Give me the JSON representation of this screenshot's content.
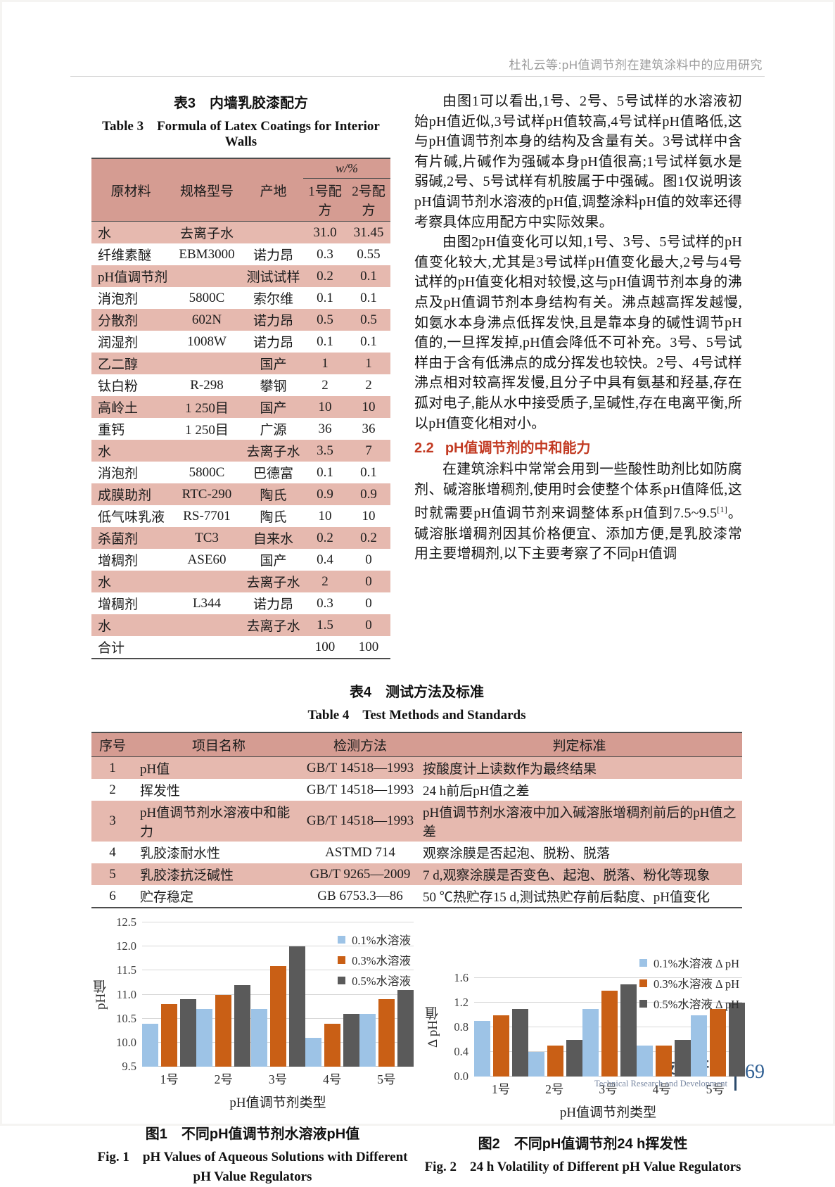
{
  "page": {
    "running_head": "杜礼云等:pH值调节剂在建筑涂料中的应用研究",
    "footer": {
      "section_cn": "技术研发",
      "section_en": "Technical Research and Development",
      "page_number": "69"
    }
  },
  "colors": {
    "table_header_bg": "#d59c92",
    "table_stripe_bg": "#e6b9af",
    "section_heading": "#c23a22",
    "footer_blue": "#2f5f93",
    "series_blue": "#9dc3e6",
    "series_orange": "#c95f15",
    "series_gray": "#5a5a5a"
  },
  "table3": {
    "title_cn": "表3　内墙乳胶漆配方",
    "title_en": "Table 3　Formula of Latex Coatings for Interior Walls",
    "headers": {
      "material": "原材料",
      "spec": "规格型号",
      "origin": "产地",
      "w_group": "w/%",
      "f1": "1号配方",
      "f2": "2号配方"
    },
    "rows": [
      [
        "水",
        "去离子水",
        "",
        "31.0",
        "31.45"
      ],
      [
        "纤维素醚",
        "EBM3000",
        "诺力昂",
        "0.3",
        "0.55"
      ],
      [
        "pH值调节剂",
        "",
        "测试试样",
        "0.2",
        "0.1"
      ],
      [
        "消泡剂",
        "5800C",
        "索尔维",
        "0.1",
        "0.1"
      ],
      [
        "分散剂",
        "602N",
        "诺力昂",
        "0.5",
        "0.5"
      ],
      [
        "润湿剂",
        "1008W",
        "诺力昂",
        "0.1",
        "0.1"
      ],
      [
        "乙二醇",
        "",
        "国产",
        "1",
        "1"
      ],
      [
        "钛白粉",
        "R-298",
        "攀钢",
        "2",
        "2"
      ],
      [
        "高岭土",
        "1 250目",
        "国产",
        "10",
        "10"
      ],
      [
        "重钙",
        "1 250目",
        "广源",
        "36",
        "36"
      ],
      [
        "水",
        "",
        "去离子水",
        "3.5",
        "7"
      ],
      [
        "消泡剂",
        "5800C",
        "巴德富",
        "0.1",
        "0.1"
      ],
      [
        "成膜助剂",
        "RTC-290",
        "陶氏",
        "0.9",
        "0.9"
      ],
      [
        "低气味乳液",
        "RS-7701",
        "陶氏",
        "10",
        "10"
      ],
      [
        "杀菌剂",
        "TC3",
        "自来水",
        "0.2",
        "0.2"
      ],
      [
        "增稠剂",
        "ASE60",
        "国产",
        "0.4",
        "0"
      ],
      [
        "水",
        "",
        "去离子水",
        "2",
        "0"
      ],
      [
        "增稠剂",
        "L344",
        "诺力昂",
        "0.3",
        "0"
      ],
      [
        "水",
        "",
        "去离子水",
        "1.5",
        "0"
      ],
      [
        "合计",
        "",
        "",
        "100",
        "100"
      ]
    ]
  },
  "body_text": {
    "p1": "由图1可以看出,1号、2号、5号试样的水溶液初始pH值近似,3号试样pH值较高,4号试样pH值略低,这与pH值调节剂本身的结构及含量有关。3号试样中含有片碱,片碱作为强碱本身pH值很高;1号试样氨水是弱碱,2号、5号试样有机胺属于中强碱。图1仅说明该pH值调节剂水溶液的pH值,调整涂料pH值的效率还得考察具体应用配方中实际效果。",
    "p2": "由图2pH值变化可以知,1号、3号、5号试样的pH值变化较大,尤其是3号试样pH值变化最大,2号与4号试样的pH值变化相对较慢,这与pH值调节剂本身的沸点及pH值调节剂本身结构有关。沸点越高挥发越慢,如氨水本身沸点低挥发快,且是靠本身的碱性调节pH值的,一旦挥发掉,pH值会降低不可补充。3号、5号试样由于含有低沸点的成分挥发也较快。2号、4号试样沸点相对较高挥发慢,且分子中具有氨基和羟基,存在孤对电子,能从水中接受质子,呈碱性,存在电离平衡,所以pH值变化相对小。",
    "section_number": "2.2",
    "section_title": "pH值调节剂的中和能力",
    "p3_a": "在建筑涂料中常常会用到一些酸性助剂比如防腐剂、碱溶胀增稠剂,使用时会使整个体系pH值降低,这时就需要pH值调节剂来调整体系pH值到7.5~9.5",
    "p3_sup": "[1]",
    "p3_b": "。碱溶胀增稠剂因其价格便宜、添加方便,是乳胶漆常用主要增稠剂,以下主要考察了不同pH值调"
  },
  "table4": {
    "title_cn": "表4　测试方法及标准",
    "title_en": "Table 4　Test Methods and Standards",
    "headers": [
      "序号",
      "项目名称",
      "检测方法",
      "判定标准"
    ],
    "rows": [
      [
        "1",
        "pH值",
        "GB/T 14518—1993",
        "按酸度计上读数作为最终结果"
      ],
      [
        "2",
        "挥发性",
        "GB/T 14518—1993",
        "24 h前后pH值之差"
      ],
      [
        "3",
        "pH值调节剂水溶液中和能力",
        "GB/T 14518—1993",
        "pH值调节剂水溶液中加入碱溶胀增稠剂前后的pH值之差"
      ],
      [
        "4",
        "乳胶漆耐水性",
        "ASTMD 714",
        "观察涂膜是否起泡、脱粉、脱落"
      ],
      [
        "5",
        "乳胶漆抗泛碱性",
        "GB/T 9265—2009",
        "7 d,观察涂膜是否变色、起泡、脱落、粉化等现象"
      ],
      [
        "6",
        "贮存稳定",
        "GB 6753.3—86",
        "50 ℃热贮存15 d,测试热贮存前后黏度、pH值变化"
      ]
    ]
  },
  "figures": [
    {
      "caption_cn": "图1　不同pH值调节剂水溶液pH值",
      "caption_en": "Fig. 1　pH Values of Aqueous Solutions with Different pH Value Regulators"
    },
    {
      "caption_cn": "图2　不同pH值调节剂24 h挥发性",
      "caption_en": "Fig. 2　24 h Volatility of Different pH Value Regulators"
    }
  ],
  "chart_data": [
    {
      "type": "bar",
      "categories": [
        "1号",
        "2号",
        "3号",
        "4号",
        "5号"
      ],
      "series": [
        {
          "name": "0.1%水溶液",
          "values": [
            10.4,
            10.7,
            10.7,
            10.1,
            10.6
          ]
        },
        {
          "name": "0.3%水溶液",
          "values": [
            10.8,
            11.0,
            11.6,
            10.4,
            10.9
          ]
        },
        {
          "name": "0.5%水溶液",
          "values": [
            10.9,
            11.2,
            12.0,
            10.6,
            11.1
          ]
        }
      ],
      "colors": [
        "#9dc3e6",
        "#c95f15",
        "#5a5a5a"
      ],
      "ylabel": "pH值",
      "xlabel": "pH值调节剂类型",
      "ylim": [
        9.5,
        12.5
      ],
      "yticks": [
        9.5,
        10.0,
        10.5,
        11.0,
        11.5,
        12.0,
        12.5
      ],
      "grid": true,
      "legend_position": "top-right-inside"
    },
    {
      "type": "bar",
      "categories": [
        "1号",
        "2号",
        "3号",
        "4号",
        "5号"
      ],
      "series": [
        {
          "name": "0.1%水溶液 Δ pH",
          "values": [
            0.9,
            0.4,
            1.1,
            0.5,
            1.0
          ]
        },
        {
          "name": "0.3%水溶液 Δ pH",
          "values": [
            1.0,
            0.5,
            1.4,
            0.5,
            1.1
          ]
        },
        {
          "name": "0.5%水溶液 Δ pH",
          "values": [
            1.1,
            0.6,
            1.5,
            0.6,
            1.2
          ]
        }
      ],
      "colors": [
        "#9dc3e6",
        "#c95f15",
        "#5a5a5a"
      ],
      "ylabel": "Δ pH值",
      "xlabel": "pH值调节剂类型",
      "ylim": [
        0,
        1.6
      ],
      "yticks": [
        0.0,
        0.4,
        0.8,
        1.2,
        1.6
      ],
      "grid": true,
      "legend_position": "top-right-above"
    }
  ]
}
